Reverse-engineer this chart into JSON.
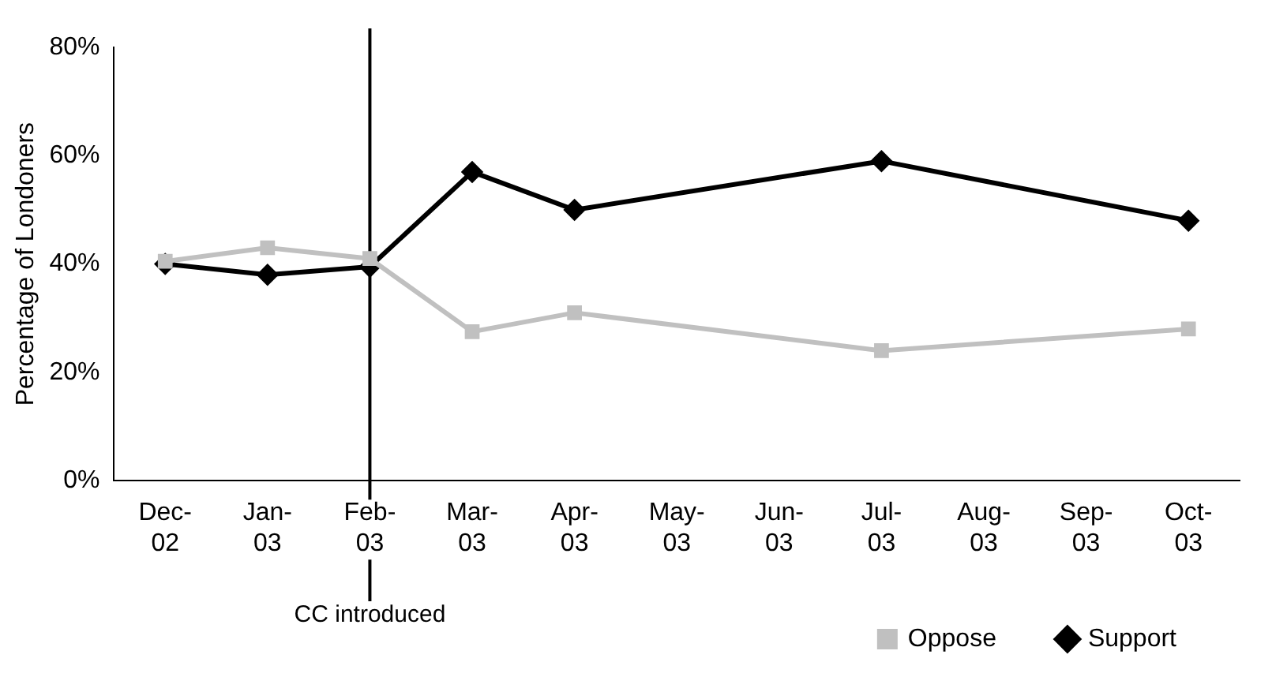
{
  "chart_data": {
    "type": "line",
    "ylabel": "Percentage of Londoners",
    "categories": [
      "Dec-02",
      "Jan-03",
      "Feb-03",
      "Mar-03",
      "Apr-03",
      "May-03",
      "Jun-03",
      "Jul-03",
      "Aug-03",
      "Sep-03",
      "Oct-03"
    ],
    "series": [
      {
        "name": "Support",
        "color": "#000000",
        "marker": "diamond",
        "values": [
          40,
          38,
          39.5,
          57,
          50,
          null,
          null,
          59,
          null,
          null,
          48
        ]
      },
      {
        "name": "Oppose",
        "color": "#c0c0c0",
        "marker": "square",
        "values": [
          40.5,
          43,
          41,
          27.5,
          31,
          null,
          null,
          24,
          null,
          null,
          28
        ]
      }
    ],
    "ylim": [
      0,
      80
    ],
    "yticks": [
      {
        "value": 0,
        "label": "0%"
      },
      {
        "value": 20,
        "label": "20%"
      },
      {
        "value": 40,
        "label": "40%"
      },
      {
        "value": 60,
        "label": "60%"
      },
      {
        "value": 80,
        "label": "80%"
      }
    ],
    "grid": false,
    "legend": "bottom right",
    "ref_lines": [
      {
        "axis": "x",
        "value": "Feb-03",
        "label": "CC introduced",
        "color": "#000000"
      }
    ]
  }
}
